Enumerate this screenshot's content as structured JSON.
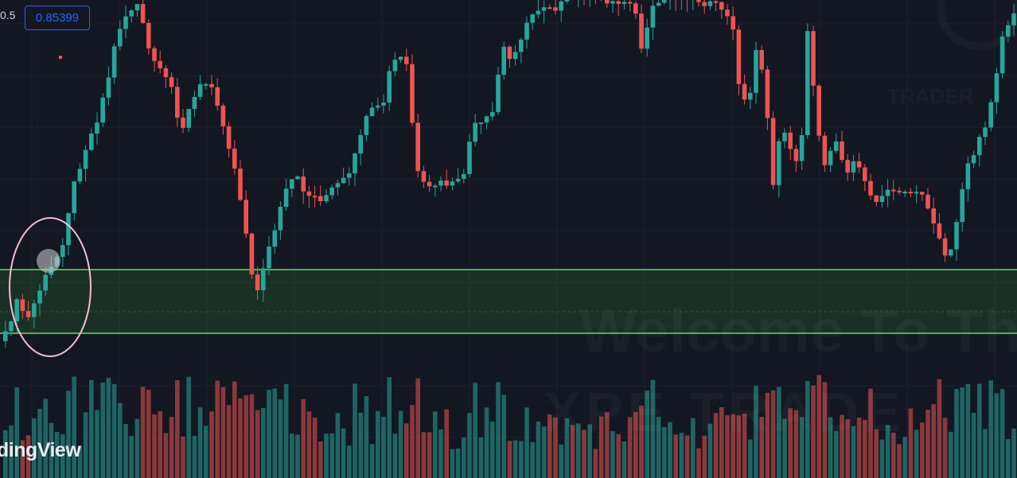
{
  "header": {
    "ohlc_fragment": "0.5",
    "price_value": "0.85399"
  },
  "watermark": {
    "welcome_text": "Welcome To Th",
    "channel_text": "XPE TRADE"
  },
  "branding": {
    "text": "dingView"
  },
  "colors": {
    "background": "#131722",
    "bull": "#26a69a",
    "bear": "#ef5350",
    "zone_fill": "#2e7d32",
    "zone_border": "#4caf50",
    "annotation_circle": "#f8bbd0",
    "price_box_border": "#2962ff"
  },
  "icons": {
    "cursor": "drag-hand-cursor-icon"
  }
}
